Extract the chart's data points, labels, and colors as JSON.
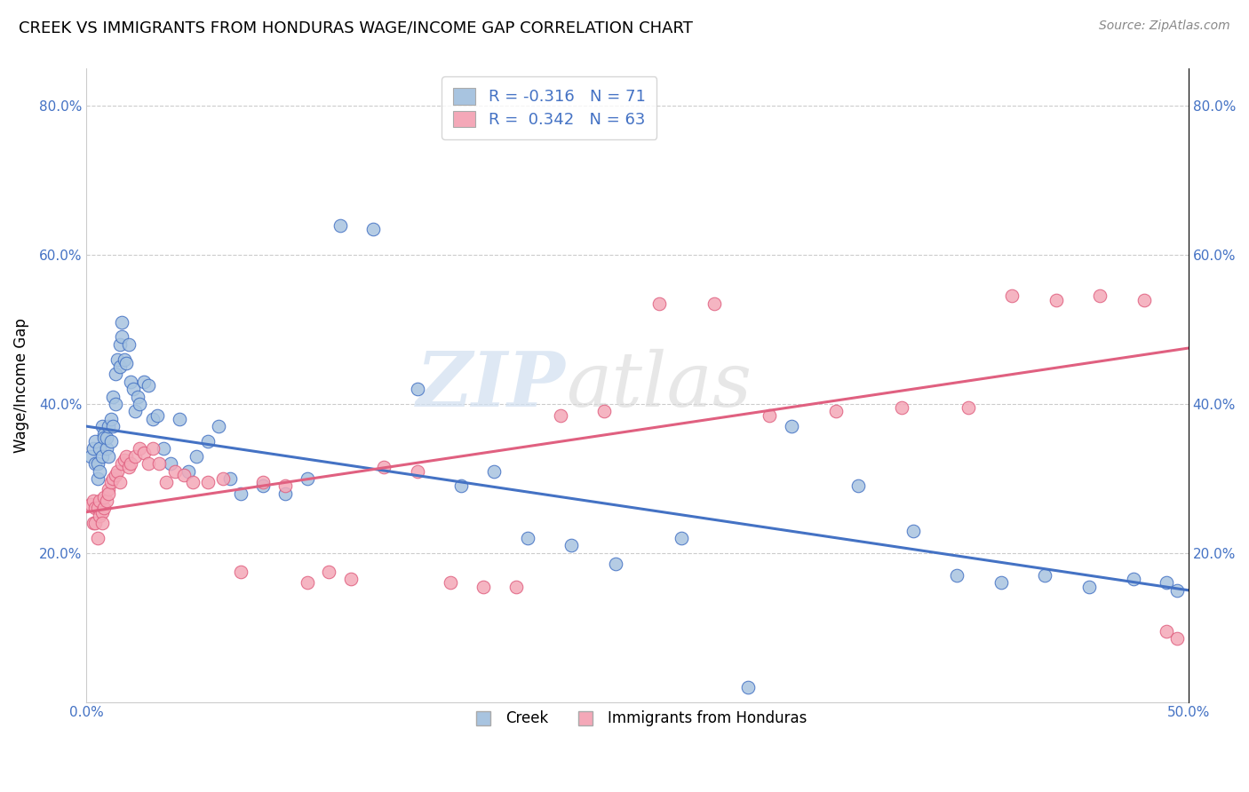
{
  "title": "CREEK VS IMMIGRANTS FROM HONDURAS WAGE/INCOME GAP CORRELATION CHART",
  "source": "Source: ZipAtlas.com",
  "ylabel": "Wage/Income Gap",
  "xlim": [
    0.0,
    0.5
  ],
  "ylim": [
    0.0,
    0.85
  ],
  "xticks": [
    0.0,
    0.1,
    0.2,
    0.3,
    0.4,
    0.5
  ],
  "yticks": [
    0.2,
    0.4,
    0.6,
    0.8
  ],
  "xticklabels": [
    "0.0%",
    "",
    "",
    "",
    "",
    "50.0%"
  ],
  "yticklabels": [
    "20.0%",
    "40.0%",
    "60.0%",
    "80.0%"
  ],
  "creek_color": "#a8c4e0",
  "honduras_color": "#f4a8b8",
  "creek_line_color": "#4472c4",
  "honduras_line_color": "#e06080",
  "creek_R": -0.316,
  "creek_N": 71,
  "honduras_R": 0.342,
  "honduras_N": 63,
  "creek_intercept": 0.37,
  "creek_slope": -0.44,
  "honduras_intercept": 0.255,
  "honduras_slope": 0.44,
  "creek_x": [
    0.002,
    0.003,
    0.004,
    0.004,
    0.005,
    0.005,
    0.006,
    0.006,
    0.007,
    0.007,
    0.008,
    0.008,
    0.009,
    0.009,
    0.01,
    0.01,
    0.011,
    0.011,
    0.012,
    0.012,
    0.013,
    0.013,
    0.014,
    0.015,
    0.015,
    0.016,
    0.016,
    0.017,
    0.018,
    0.019,
    0.02,
    0.021,
    0.022,
    0.023,
    0.024,
    0.026,
    0.028,
    0.03,
    0.032,
    0.035,
    0.038,
    0.042,
    0.046,
    0.05,
    0.055,
    0.06,
    0.065,
    0.07,
    0.08,
    0.09,
    0.1,
    0.115,
    0.13,
    0.15,
    0.17,
    0.185,
    0.2,
    0.22,
    0.24,
    0.27,
    0.3,
    0.32,
    0.35,
    0.375,
    0.395,
    0.415,
    0.435,
    0.455,
    0.475,
    0.49,
    0.495
  ],
  "creek_y": [
    0.33,
    0.34,
    0.35,
    0.32,
    0.3,
    0.32,
    0.31,
    0.34,
    0.33,
    0.37,
    0.36,
    0.355,
    0.34,
    0.355,
    0.33,
    0.37,
    0.35,
    0.38,
    0.37,
    0.41,
    0.4,
    0.44,
    0.46,
    0.45,
    0.48,
    0.49,
    0.51,
    0.46,
    0.455,
    0.48,
    0.43,
    0.42,
    0.39,
    0.41,
    0.4,
    0.43,
    0.425,
    0.38,
    0.385,
    0.34,
    0.32,
    0.38,
    0.31,
    0.33,
    0.35,
    0.37,
    0.3,
    0.28,
    0.29,
    0.28,
    0.3,
    0.64,
    0.635,
    0.42,
    0.29,
    0.31,
    0.22,
    0.21,
    0.185,
    0.22,
    0.02,
    0.37,
    0.29,
    0.23,
    0.17,
    0.16,
    0.17,
    0.155,
    0.165,
    0.16,
    0.15
  ],
  "honduras_x": [
    0.002,
    0.003,
    0.003,
    0.004,
    0.004,
    0.005,
    0.005,
    0.006,
    0.006,
    0.007,
    0.007,
    0.008,
    0.008,
    0.009,
    0.01,
    0.01,
    0.011,
    0.012,
    0.013,
    0.014,
    0.015,
    0.016,
    0.017,
    0.018,
    0.019,
    0.02,
    0.022,
    0.024,
    0.026,
    0.028,
    0.03,
    0.033,
    0.036,
    0.04,
    0.044,
    0.048,
    0.055,
    0.062,
    0.07,
    0.08,
    0.09,
    0.1,
    0.11,
    0.12,
    0.135,
    0.15,
    0.165,
    0.18,
    0.195,
    0.215,
    0.235,
    0.26,
    0.285,
    0.31,
    0.34,
    0.37,
    0.4,
    0.42,
    0.44,
    0.46,
    0.48,
    0.49,
    0.495
  ],
  "honduras_y": [
    0.265,
    0.27,
    0.24,
    0.26,
    0.24,
    0.26,
    0.22,
    0.25,
    0.27,
    0.255,
    0.24,
    0.26,
    0.275,
    0.27,
    0.285,
    0.28,
    0.295,
    0.3,
    0.305,
    0.31,
    0.295,
    0.32,
    0.325,
    0.33,
    0.315,
    0.32,
    0.33,
    0.34,
    0.335,
    0.32,
    0.34,
    0.32,
    0.295,
    0.31,
    0.305,
    0.295,
    0.295,
    0.3,
    0.175,
    0.295,
    0.29,
    0.16,
    0.175,
    0.165,
    0.315,
    0.31,
    0.16,
    0.155,
    0.155,
    0.385,
    0.39,
    0.535,
    0.535,
    0.385,
    0.39,
    0.395,
    0.395,
    0.545,
    0.54,
    0.545,
    0.54,
    0.095,
    0.085
  ],
  "watermark_zip": "ZIP",
  "watermark_atlas": "atlas"
}
